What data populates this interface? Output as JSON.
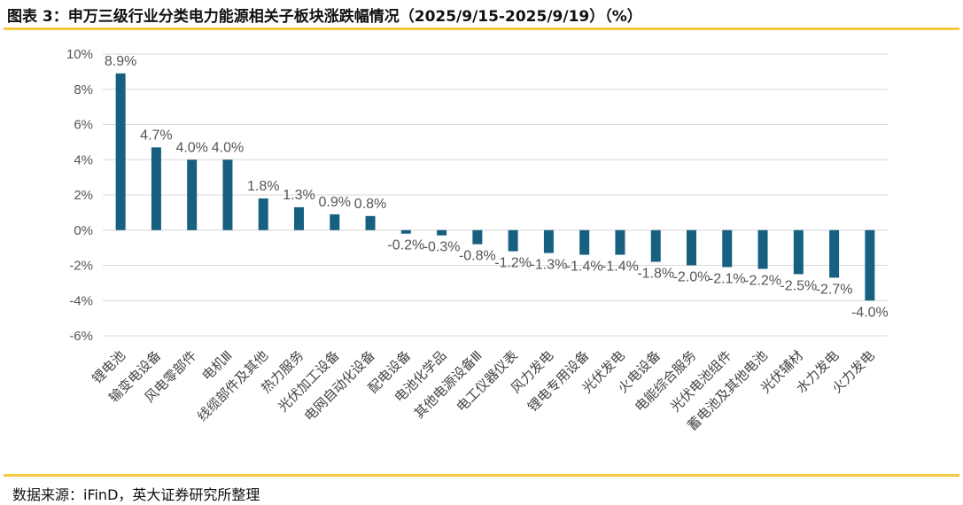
{
  "header": {
    "title": "图表 3：申万三级行业分类电力能源相关子板块涨跌幅情况（2025/9/15-2025/9/19）（%）"
  },
  "footer": {
    "source": "数据来源：iFinD，英大证券研究所整理"
  },
  "colors": {
    "bar": "#17607f",
    "accent_rule": "#f5c842",
    "grid": "#d9d9d9"
  },
  "chart_data": {
    "type": "bar",
    "title": "申万三级行业分类电力能源相关子板块涨跌幅情况（2025/9/15-2025/9/19）（%）",
    "xlabel": "",
    "ylabel": "",
    "ylim": [
      -6,
      10
    ],
    "yticks": [
      10,
      8,
      6,
      4,
      2,
      0,
      -2,
      -4,
      -6
    ],
    "ytick_labels": [
      "10%",
      "8%",
      "6%",
      "4%",
      "2%",
      "0%",
      "-2%",
      "-4%",
      "-6%"
    ],
    "grid": true,
    "categories": [
      "锂电池",
      "输变电设备",
      "风电零部件",
      "电机Ⅲ",
      "线缆部件及其他",
      "热力服务",
      "光伏加工设备",
      "电网自动化设备",
      "配电设备",
      "电池化学品",
      "其他电源设备Ⅲ",
      "电工仪器仪表",
      "风力发电",
      "锂电专用设备",
      "光伏发电",
      "火电设备",
      "电能综合服务",
      "光伏电池组件",
      "蓄电池及其他电池",
      "光伏辅材",
      "水力发电",
      "火力发电"
    ],
    "values": [
      8.9,
      4.7,
      4.0,
      4.0,
      1.8,
      1.3,
      0.9,
      0.8,
      -0.2,
      -0.3,
      -0.8,
      -1.2,
      -1.3,
      -1.4,
      -1.4,
      -1.8,
      -2.0,
      -2.1,
      -2.2,
      -2.5,
      -2.7,
      -4.0
    ],
    "value_labels": [
      "8.9%",
      "4.7%",
      "4.0%",
      "4.0%",
      "1.8%",
      "1.3%",
      "0.9%",
      "0.8%",
      "-0.2%",
      "-0.3%",
      "-0.8%",
      "-1.2%",
      "-1.3%",
      "-1.4%",
      "-1.4%",
      "-1.8%",
      "-2.0%",
      "-2.1%",
      "-2.2%",
      "-2.5%",
      "-2.7%",
      "-4.0%"
    ]
  }
}
